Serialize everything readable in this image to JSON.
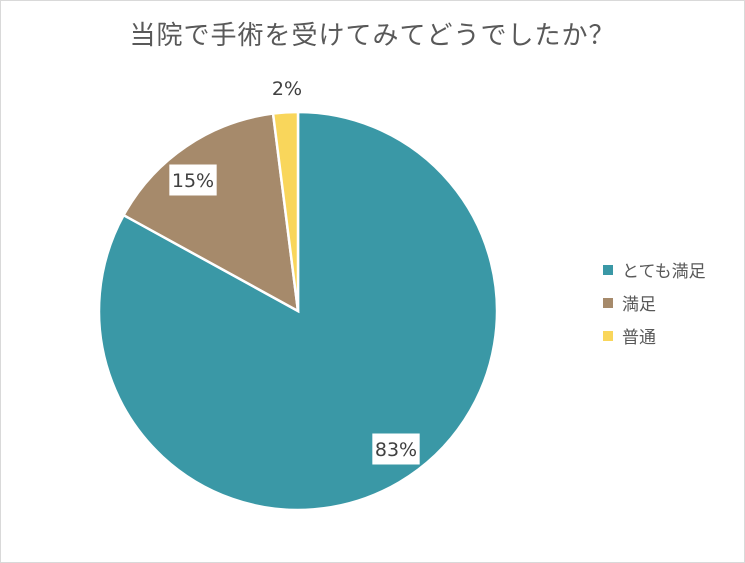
{
  "chart_data": {
    "type": "pie",
    "title": "当院で手術を受けてみてどうでしたか？",
    "categories": [
      "とても満足",
      "満足",
      "普通"
    ],
    "values": [
      83,
      15,
      2
    ],
    "data_labels": [
      "83%",
      "15%",
      "2%"
    ],
    "colors": [
      "#3a98a6",
      "#a68a6b",
      "#f9d65b"
    ],
    "legend_position": "right"
  }
}
